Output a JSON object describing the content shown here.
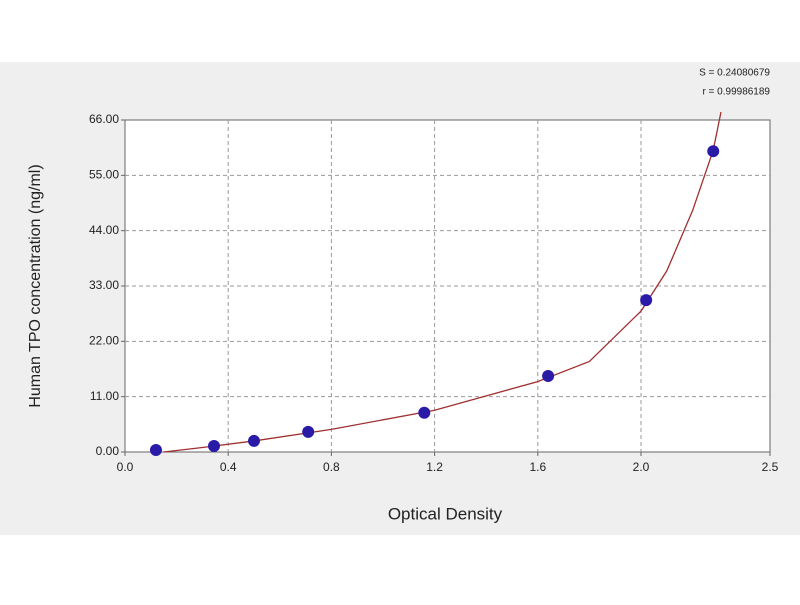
{
  "chart_data": {
    "type": "scatter",
    "x_label": "Optical Density",
    "y_label": "Human TPO concentration (ng/ml)",
    "annotations": [
      "S = 0.24080679",
      "r = 0.99986189"
    ],
    "x": [
      0.12,
      0.345,
      0.5,
      0.71,
      1.16,
      1.64,
      2.02,
      2.28
    ],
    "values": [
      0.4,
      1.2,
      2.2,
      4.0,
      7.8,
      15.1,
      30.2,
      59.8
    ],
    "color": "#2a1aa8",
    "curve": {
      "color": "#a03030",
      "x": [
        0.15,
        0.3,
        0.5,
        0.8,
        1.2,
        1.6,
        1.8,
        2.0,
        2.1,
        2.2,
        2.28,
        2.31
      ],
      "values": [
        0,
        0.9,
        2.2,
        4.5,
        8.3,
        14,
        18,
        28,
        36,
        48,
        60,
        67.6
      ]
    },
    "xlim": [
      0,
      2.5
    ],
    "xticks": [
      {
        "value": 0,
        "label": "0.0"
      },
      0.4,
      0.8,
      1.2,
      1.6,
      {
        "value": 2,
        "label": "2.0"
      },
      2.5
    ],
    "ylim": [
      0,
      66
    ],
    "yticks": [
      {
        "value": 0,
        "label": "0.00"
      },
      {
        "value": 11,
        "label": "11.00"
      },
      {
        "value": 22,
        "label": "22.00"
      },
      {
        "value": 33,
        "label": "33.00"
      },
      {
        "value": 44,
        "label": "44.00"
      },
      {
        "value": 55,
        "label": "55.00"
      },
      {
        "value": 66,
        "label": "66.00"
      }
    ],
    "grid": true
  }
}
